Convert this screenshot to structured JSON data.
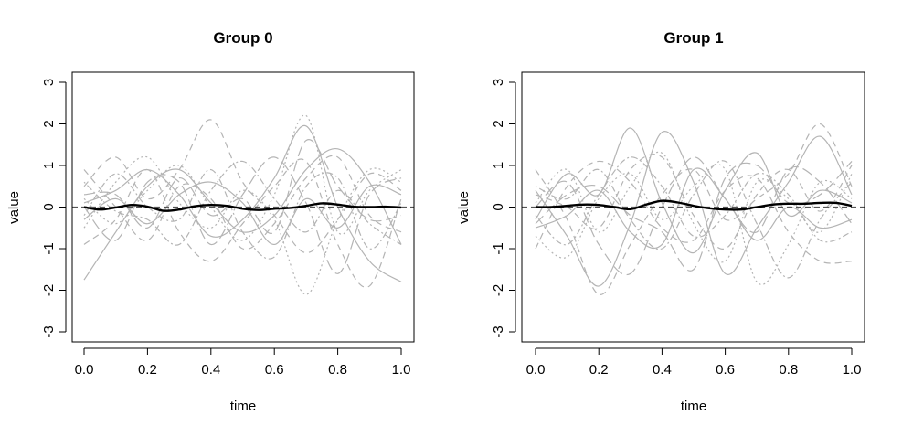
{
  "figure": {
    "panels_count": 2
  },
  "colors": {
    "mean_line": "#000000",
    "sample_curves": "#b4b4b4",
    "zero_line": "#555555",
    "axes": "#000000"
  },
  "chart_data": [
    {
      "type": "line",
      "title": "Group 0",
      "xlabel": "time",
      "ylabel": "value",
      "xlim": [
        0.0,
        1.0
      ],
      "ylim": [
        -3,
        3
      ],
      "xticks": [
        "0.0",
        "0.2",
        "0.4",
        "0.6",
        "0.8",
        "1.0"
      ],
      "yticks": [
        "-3",
        "-2",
        "-1",
        "0",
        "1",
        "2",
        "3"
      ],
      "grid": false,
      "legend": "none",
      "reference_line": {
        "y": 0,
        "style": "dashed"
      },
      "series": [
        {
          "role": "mean",
          "style": "solid-bold",
          "x": [
            0.0,
            0.05,
            0.1,
            0.15,
            0.2,
            0.25,
            0.3,
            0.35,
            0.4,
            0.45,
            0.5,
            0.55,
            0.6,
            0.65,
            0.7,
            0.75,
            0.8,
            0.85,
            0.9,
            0.95,
            1.0
          ],
          "values": [
            0.0,
            -0.06,
            -0.01,
            0.05,
            0.01,
            -0.09,
            -0.06,
            0.02,
            0.05,
            0.03,
            -0.04,
            -0.07,
            -0.04,
            -0.02,
            0.03,
            0.09,
            0.06,
            0.01,
            0.0,
            0.01,
            -0.01
          ]
        }
      ],
      "sample_curves": [
        {
          "style": "solid",
          "x": [
            0.0,
            0.1,
            0.2,
            0.3,
            0.4,
            0.5,
            0.6,
            0.7,
            0.8,
            0.9,
            1.0
          ],
          "values": [
            -1.75,
            -0.6,
            0.5,
            0.9,
            0.1,
            -0.6,
            -0.2,
            0.9,
            1.4,
            0.6,
            -0.9
          ]
        },
        {
          "style": "solid",
          "x": [
            0.0,
            0.1,
            0.2,
            0.3,
            0.4,
            0.5,
            0.6,
            0.7,
            0.8,
            0.9,
            1.0
          ],
          "values": [
            0.1,
            0.4,
            0.9,
            0.3,
            -0.7,
            -0.3,
            0.7,
            1.95,
            0.0,
            -1.3,
            -1.8
          ]
        },
        {
          "style": "solid",
          "x": [
            0.0,
            0.1,
            0.2,
            0.3,
            0.4,
            0.5,
            0.6,
            0.7,
            0.8,
            0.9,
            1.0
          ],
          "values": [
            -0.3,
            0.2,
            -0.4,
            0.3,
            0.6,
            0.1,
            -0.9,
            0.2,
            -0.5,
            0.5,
            0.3
          ]
        },
        {
          "style": "dashed",
          "x": [
            0.0,
            0.1,
            0.2,
            0.3,
            0.4,
            0.5,
            0.6,
            0.7,
            0.8,
            0.9,
            1.0
          ],
          "values": [
            0.5,
            1.2,
            0.2,
            0.9,
            2.1,
            0.6,
            -0.2,
            -1.1,
            -0.3,
            0.8,
            0.4
          ]
        },
        {
          "style": "dashed",
          "x": [
            0.0,
            0.1,
            0.2,
            0.3,
            0.4,
            0.5,
            0.6,
            0.7,
            0.8,
            0.9,
            1.0
          ],
          "values": [
            -0.9,
            -0.3,
            0.9,
            -0.6,
            -1.3,
            -0.4,
            0.5,
            1.1,
            -0.9,
            -1.9,
            0.2
          ]
        },
        {
          "style": "dashed",
          "x": [
            0.0,
            0.1,
            0.2,
            0.3,
            0.4,
            0.5,
            0.6,
            0.7,
            0.8,
            0.9,
            1.0
          ],
          "values": [
            0.9,
            0.0,
            -0.8,
            0.5,
            0.2,
            -1.0,
            -0.4,
            0.7,
            1.2,
            -0.2,
            -0.6
          ]
        },
        {
          "style": "dotted",
          "x": [
            0.0,
            0.1,
            0.2,
            0.3,
            0.4,
            0.5,
            0.6,
            0.7,
            0.8,
            0.9,
            1.0
          ],
          "values": [
            0.2,
            -0.4,
            0.4,
            1.0,
            0.0,
            -0.8,
            0.3,
            2.2,
            -0.6,
            0.4,
            0.9
          ]
        },
        {
          "style": "dotted",
          "x": [
            0.0,
            0.1,
            0.2,
            0.3,
            0.4,
            0.5,
            0.6,
            0.7,
            0.8,
            0.9,
            1.0
          ],
          "values": [
            -0.5,
            0.6,
            1.2,
            0.1,
            -0.5,
            0.4,
            -0.3,
            -2.1,
            -0.3,
            0.9,
            0.6
          ]
        },
        {
          "style": "dotdash",
          "x": [
            0.0,
            0.1,
            0.2,
            0.3,
            0.4,
            0.5,
            0.6,
            0.7,
            0.8,
            0.9,
            1.0
          ],
          "values": [
            0.6,
            -0.1,
            -0.3,
            -0.9,
            0.4,
            1.1,
            0.2,
            -0.6,
            0.4,
            -0.4,
            -0.9
          ]
        },
        {
          "style": "dotdash",
          "x": [
            0.0,
            0.1,
            0.2,
            0.3,
            0.4,
            0.5,
            0.6,
            0.7,
            0.8,
            0.9,
            1.0
          ],
          "values": [
            -0.2,
            0.8,
            0.0,
            -0.3,
            0.9,
            -0.6,
            -1.2,
            0.5,
            0.7,
            -1.0,
            0.1
          ]
        },
        {
          "style": "longdash",
          "x": [
            0.0,
            0.1,
            0.2,
            0.3,
            0.4,
            0.5,
            0.6,
            0.7,
            0.8,
            0.9,
            1.0
          ],
          "values": [
            0.0,
            -0.8,
            0.6,
            0.6,
            -0.9,
            0.3,
            1.2,
            0.1,
            -1.6,
            0.3,
            0.7
          ]
        },
        {
          "style": "longdash",
          "x": [
            0.0,
            0.1,
            0.2,
            0.3,
            0.4,
            0.5,
            0.6,
            0.7,
            0.8,
            0.9,
            1.0
          ],
          "values": [
            0.3,
            0.3,
            -0.5,
            0.7,
            -0.2,
            0.2,
            -0.6,
            1.6,
            0.5,
            -0.3,
            -0.2
          ]
        }
      ]
    },
    {
      "type": "line",
      "title": "Group 1",
      "xlabel": "time",
      "ylabel": "value",
      "xlim": [
        0.0,
        1.0
      ],
      "ylim": [
        -3,
        3
      ],
      "xticks": [
        "0.0",
        "0.2",
        "0.4",
        "0.6",
        "0.8",
        "1.0"
      ],
      "yticks": [
        "-3",
        "-2",
        "-1",
        "0",
        "1",
        "2",
        "3"
      ],
      "grid": false,
      "legend": "none",
      "reference_line": {
        "y": 0,
        "style": "dashed"
      },
      "series": [
        {
          "role": "mean",
          "style": "solid-bold",
          "x": [
            0.0,
            0.05,
            0.1,
            0.15,
            0.2,
            0.25,
            0.3,
            0.35,
            0.4,
            0.45,
            0.5,
            0.55,
            0.6,
            0.65,
            0.7,
            0.75,
            0.8,
            0.85,
            0.9,
            0.95,
            1.0
          ],
          "values": [
            0.0,
            0.0,
            0.03,
            0.06,
            0.05,
            0.0,
            -0.05,
            0.06,
            0.15,
            0.11,
            0.03,
            -0.03,
            -0.06,
            -0.06,
            0.0,
            0.06,
            0.08,
            0.08,
            0.1,
            0.1,
            0.03
          ]
        }
      ],
      "sample_curves": [
        {
          "style": "solid",
          "x": [
            0.0,
            0.1,
            0.2,
            0.3,
            0.4,
            0.5,
            0.6,
            0.7,
            0.8,
            0.9,
            1.0
          ],
          "values": [
            -0.3,
            0.8,
            0.3,
            1.9,
            0.1,
            -1.1,
            0.4,
            1.3,
            -0.2,
            0.4,
            0.1
          ]
        },
        {
          "style": "solid",
          "x": [
            0.0,
            0.1,
            0.2,
            0.3,
            0.4,
            0.5,
            0.6,
            0.7,
            0.8,
            0.9,
            1.0
          ],
          "values": [
            0.4,
            -0.7,
            -1.9,
            -0.4,
            1.8,
            0.6,
            -1.6,
            -0.5,
            0.6,
            1.7,
            0.3
          ]
        },
        {
          "style": "solid",
          "x": [
            0.0,
            0.1,
            0.2,
            0.3,
            0.4,
            0.5,
            0.6,
            0.7,
            0.8,
            0.9,
            1.0
          ],
          "values": [
            -0.5,
            -0.2,
            0.4,
            -0.6,
            -0.9,
            0.9,
            0.2,
            -0.8,
            0.0,
            -0.5,
            -0.3
          ]
        },
        {
          "style": "dashed",
          "x": [
            0.0,
            0.1,
            0.2,
            0.3,
            0.4,
            0.5,
            0.6,
            0.7,
            0.8,
            0.9,
            1.0
          ],
          "values": [
            0.9,
            -0.3,
            -2.1,
            -0.9,
            0.3,
            0.9,
            -0.3,
            0.2,
            0.8,
            2.0,
            0.5
          ]
        },
        {
          "style": "dashed",
          "x": [
            0.0,
            0.1,
            0.2,
            0.3,
            0.4,
            0.5,
            0.6,
            0.7,
            0.8,
            0.9,
            1.0
          ],
          "values": [
            -1.0,
            0.5,
            1.1,
            0.6,
            -0.5,
            -0.8,
            0.4,
            0.7,
            -0.6,
            -1.3,
            -1.3
          ]
        },
        {
          "style": "dashed",
          "x": [
            0.0,
            0.1,
            0.2,
            0.3,
            0.4,
            0.5,
            0.6,
            0.7,
            0.8,
            0.9,
            1.0
          ],
          "values": [
            0.3,
            0.0,
            -0.5,
            0.9,
            1.2,
            -0.2,
            -1.0,
            0.3,
            0.9,
            -0.1,
            1.0
          ]
        },
        {
          "style": "dotted",
          "x": [
            0.0,
            0.1,
            0.2,
            0.3,
            0.4,
            0.5,
            0.6,
            0.7,
            0.8,
            0.9,
            1.0
          ],
          "values": [
            0.1,
            0.9,
            -0.6,
            0.5,
            1.3,
            -0.4,
            -1.3,
            0.6,
            0.2,
            -0.6,
            0.8
          ]
        },
        {
          "style": "dotted",
          "x": [
            0.0,
            0.1,
            0.2,
            0.3,
            0.4,
            0.5,
            0.6,
            0.7,
            0.8,
            0.9,
            1.0
          ],
          "values": [
            -0.7,
            -1.2,
            0.2,
            0.8,
            -0.3,
            0.5,
            0.9,
            -1.8,
            -0.9,
            0.6,
            0.2
          ]
        },
        {
          "style": "dotdash",
          "x": [
            0.0,
            0.1,
            0.2,
            0.3,
            0.4,
            0.5,
            0.6,
            0.7,
            0.8,
            0.9,
            1.0
          ],
          "values": [
            0.5,
            0.2,
            0.9,
            -0.3,
            -1.0,
            0.3,
            1.1,
            -0.4,
            -1.7,
            -0.3,
            0.6
          ]
        },
        {
          "style": "dotdash",
          "x": [
            0.0,
            0.1,
            0.2,
            0.3,
            0.4,
            0.5,
            0.6,
            0.7,
            0.8,
            0.9,
            1.0
          ],
          "values": [
            -0.2,
            -0.9,
            0.3,
            1.2,
            0.5,
            -0.7,
            -0.2,
            0.8,
            0.3,
            -0.8,
            -0.6
          ]
        },
        {
          "style": "longdash",
          "x": [
            0.0,
            0.1,
            0.2,
            0.3,
            0.4,
            0.5,
            0.6,
            0.7,
            0.8,
            0.9,
            1.0
          ],
          "values": [
            0.0,
            0.6,
            -0.9,
            -1.6,
            0.0,
            1.2,
            0.2,
            -0.6,
            0.9,
            0.6,
            -0.4
          ]
        },
        {
          "style": "longdash",
          "x": [
            0.0,
            0.1,
            0.2,
            0.3,
            0.4,
            0.5,
            0.6,
            0.7,
            0.8,
            0.9,
            1.0
          ],
          "values": [
            -0.4,
            0.3,
            0.5,
            -0.2,
            -0.6,
            -1.5,
            0.7,
            1.0,
            0.1,
            0.3,
            1.1
          ]
        }
      ]
    }
  ]
}
